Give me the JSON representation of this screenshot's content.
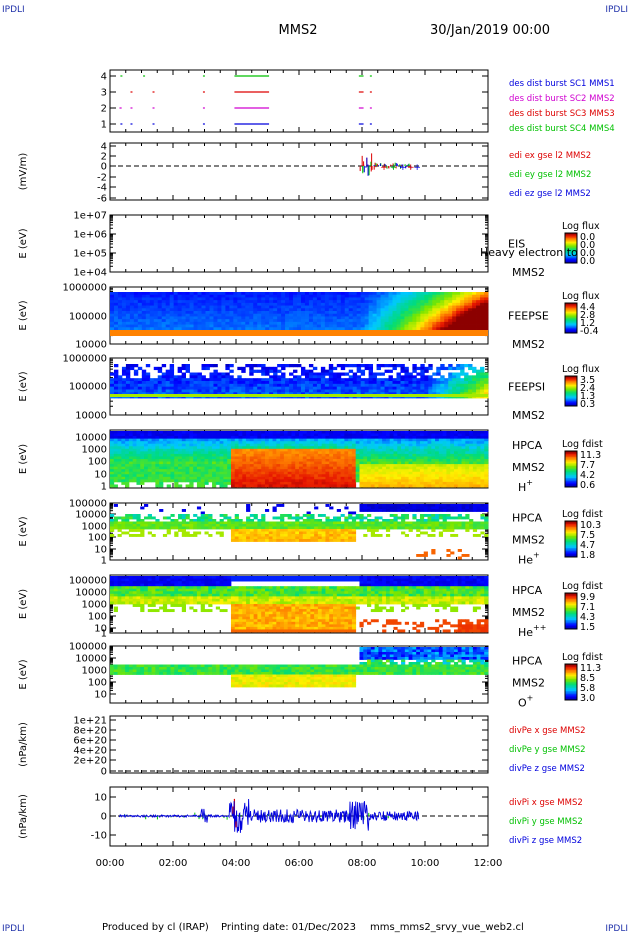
{
  "corner_labels": [
    "IPDLI",
    "IPDLI",
    "IPDLI",
    "IPDLI"
  ],
  "header": {
    "spacecraft": "MMS2",
    "datetime": "30/Jan/2019 00:00"
  },
  "footer": {
    "produced_by": "Produced by cl (IRAP)",
    "printing_date": "Printing date: 01/Dec/2023",
    "script": "mms_mms2_srvy_vue_web2.cl"
  },
  "colors": {
    "red": "#dd0000",
    "magenta": "#d000d0",
    "green": "#00c000",
    "blue": "#0000dd",
    "axis": "#000000"
  },
  "chart_data": [
    {
      "type": "line",
      "panel": "burst-availability",
      "ylim": [
        0.5,
        4.5
      ],
      "yticks": [
        "4",
        "3",
        "2",
        "1"
      ],
      "series": [
        {
          "name": "des dist burst SC1 MMS1",
          "color": "#0000dd",
          "level": 1,
          "intervals": [
            [
              0.33,
              0.35
            ],
            [
              0.65,
              0.67
            ],
            [
              1.35,
              1.37
            ],
            [
              2.95,
              2.98
            ],
            [
              3.95,
              5.05
            ],
            [
              7.9,
              8.05
            ],
            [
              8.25,
              8.3
            ]
          ]
        },
        {
          "name": "des dist burst SC2 MMS2",
          "color": "#d000d0",
          "level": 2,
          "intervals": [
            [
              0.3,
              0.37
            ],
            [
              0.65,
              0.67
            ],
            [
              1.35,
              1.37
            ],
            [
              2.95,
              2.98
            ],
            [
              3.95,
              5.05
            ],
            [
              7.9,
              8.05
            ],
            [
              8.25,
              8.3
            ]
          ]
        },
        {
          "name": "des dist burst SC3 MMS3",
          "color": "#dd0000",
          "level": 3,
          "intervals": [
            [
              0.65,
              0.67
            ],
            [
              1.35,
              1.37
            ],
            [
              2.95,
              2.98
            ],
            [
              3.95,
              5.05
            ],
            [
              7.9,
              8.05
            ],
            [
              8.25,
              8.3
            ]
          ]
        },
        {
          "name": "des dist burst SC4 MMS4",
          "color": "#00c000",
          "level": 4,
          "intervals": [
            [
              0.33,
              0.35
            ],
            [
              1.05,
              1.07
            ],
            [
              2.95,
              2.98
            ],
            [
              3.95,
              5.05
            ],
            [
              7.9,
              8.05
            ],
            [
              8.25,
              8.3
            ]
          ]
        }
      ]
    },
    {
      "type": "line",
      "panel": "edi-efield",
      "ylabel": "(mV/m)",
      "ylim": [
        -6,
        4
      ],
      "yticks": [
        "4",
        "2",
        "0",
        "-2",
        "-4",
        "-6"
      ],
      "series": [
        {
          "name": "edi ex gse l2 MMS2",
          "color": "#dd0000"
        },
        {
          "name": "edi ey gse l2 MMS2",
          "color": "#00c000"
        },
        {
          "name": "edi ez gse l2 MMS2",
          "color": "#0000dd"
        }
      ]
    },
    {
      "type": "heatmap",
      "panel": "eis",
      "ylabel": "E (eV)",
      "yticks": [
        "1e+07",
        "1e+06",
        "1e+05",
        "1e+04"
      ],
      "instrument": "EIS",
      "probe": "MMS2",
      "overlay_text": "Heavy electron to",
      "colorbar": {
        "label": "Log flux",
        "ticks": [
          "0.0",
          "0.0",
          "0.0",
          "0.0"
        ]
      }
    },
    {
      "type": "heatmap",
      "panel": "feeps-electrons",
      "ylabel": "E (eV)",
      "yticks": [
        "1000000",
        "100000",
        "10000"
      ],
      "instrument": "FEEPSE",
      "probe": "MMS2",
      "colorbar": {
        "label": "Log flux",
        "ticks": [
          "4.4",
          "2.8",
          "1.2",
          "-0.4"
        ]
      }
    },
    {
      "type": "heatmap",
      "panel": "feeps-ions",
      "ylabel": "E (eV)",
      "yticks": [
        "1000000",
        "100000",
        "10000"
      ],
      "instrument": "FEEPSI",
      "probe": "MMS2",
      "colorbar": {
        "label": "Log flux",
        "ticks": [
          "3.5",
          "2.4",
          "1.3",
          "0.3"
        ]
      }
    },
    {
      "type": "heatmap",
      "panel": "hpca-h",
      "ylabel": "E (eV)",
      "yticks": [
        "10000",
        "1000",
        "100",
        "10",
        "1"
      ],
      "instrument": "HPCA",
      "probe": "MMS2",
      "species": "H",
      "species_sup": "+",
      "colorbar": {
        "label": "Log fdist",
        "ticks": [
          "11.3",
          "7.7",
          "4.2",
          "0.6"
        ]
      }
    },
    {
      "type": "heatmap",
      "panel": "hpca-he1",
      "ylabel": "E (eV)",
      "yticks": [
        "100000",
        "10000",
        "1000",
        "100",
        "10",
        "1"
      ],
      "instrument": "HPCA",
      "probe": "MMS2",
      "species": "He",
      "species_sup": "+",
      "colorbar": {
        "label": "Log fdist",
        "ticks": [
          "10.3",
          "7.5",
          "4.7",
          "1.8"
        ]
      }
    },
    {
      "type": "heatmap",
      "panel": "hpca-he2",
      "ylabel": "E (eV)",
      "yticks": [
        "100000",
        "10000",
        "1000",
        "100",
        "10",
        "1"
      ],
      "instrument": "HPCA",
      "probe": "MMS2",
      "species": "He",
      "species_sup": "++",
      "colorbar": {
        "label": "Log fdist",
        "ticks": [
          "9.9",
          "7.1",
          "4.3",
          "1.5"
        ]
      }
    },
    {
      "type": "heatmap",
      "panel": "hpca-o",
      "ylabel": "E (eV)",
      "yticks": [
        "100000",
        "10000",
        "1000",
        "100",
        "10"
      ],
      "instrument": "HPCA",
      "probe": "MMS2",
      "species": "O",
      "species_sup": "+",
      "colorbar": {
        "label": "Log fdist",
        "ticks": [
          "11.3",
          "8.5",
          "5.8",
          "3.0"
        ]
      }
    },
    {
      "type": "line",
      "panel": "divpe",
      "ylabel": "(nPa/km)",
      "ylim": [
        0,
        1e+21
      ],
      "yticks": [
        "1e+21",
        "8e+20",
        "6e+20",
        "4e+20",
        "2e+20",
        "0"
      ],
      "series": [
        {
          "name": "divPe x gse MMS2",
          "color": "#dd0000"
        },
        {
          "name": "divPe y gse MMS2",
          "color": "#00c000"
        },
        {
          "name": "divPe z gse MMS2",
          "color": "#0000dd"
        }
      ]
    },
    {
      "type": "line",
      "panel": "divpi",
      "ylabel": "(nPa/km)",
      "ylim": [
        -15,
        15
      ],
      "yticks": [
        "10",
        "0",
        "-10"
      ],
      "series": [
        {
          "name": "divPi x gse MMS2",
          "color": "#dd0000"
        },
        {
          "name": "divPi y gse MMS2",
          "color": "#00c000"
        },
        {
          "name": "divPi z gse MMS2",
          "color": "#0000dd"
        }
      ]
    }
  ],
  "time_axis": {
    "ticks": [
      "00:00",
      "02:00",
      "04:00",
      "06:00",
      "08:00",
      "10:00",
      "12:00"
    ],
    "range_hours": [
      0,
      12
    ]
  }
}
